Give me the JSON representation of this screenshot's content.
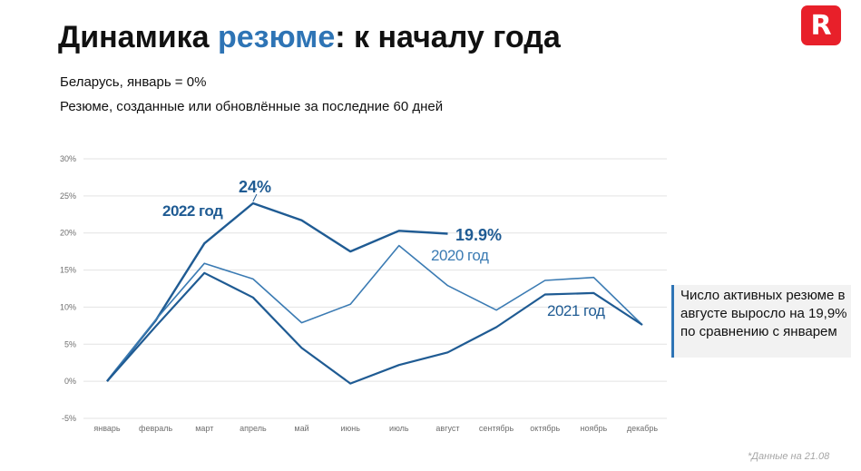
{
  "header": {
    "title_part1": "Динамика ",
    "title_highlight": "резюме",
    "title_part2": ": к началу года",
    "subtitle1": "Беларусь, январь = 0%",
    "subtitle2": "Резюме, созданные или обновлённые за последние 60 дней",
    "logo_letter": "R"
  },
  "colors": {
    "accent": "#2e74b5",
    "series_2022": "#1f5b93",
    "series_2021": "#1f5b93",
    "series_2020": "#3b7bb3",
    "logo": "#e8202a"
  },
  "callout": {
    "text": "Число активных резюме в августе выросло на 19,9% по сравнению с январем"
  },
  "footnote": "*Данные на 21.08",
  "chart_data": {
    "type": "line",
    "categories": [
      "январь",
      "февраль",
      "март",
      "апрель",
      "май",
      "июнь",
      "июль",
      "август",
      "сентябрь",
      "октябрь",
      "ноябрь",
      "декабрь"
    ],
    "y_ticks": [
      "30%",
      "25%",
      "20%",
      "15%",
      "10%",
      "5%",
      "0%",
      "-5%"
    ],
    "ylim": [
      -5,
      30
    ],
    "grid": true,
    "series": [
      {
        "name": "2022 год",
        "values": [
          0,
          8.2,
          18.6,
          24,
          21.7,
          17.5,
          20.3,
          19.9,
          null,
          null,
          null,
          null
        ]
      },
      {
        "name": "2020 год",
        "values": [
          0,
          8.3,
          15.9,
          13.8,
          7.9,
          10.4,
          18.3,
          12.9,
          9.6,
          13.6,
          14,
          7.6
        ]
      },
      {
        "name": "2021 год",
        "values": [
          0,
          7.4,
          14.6,
          11.3,
          4.5,
          -0.3,
          2.2,
          3.9,
          7.3,
          11.7,
          11.9,
          7.6
        ]
      }
    ],
    "annotations": [
      {
        "text": "24%",
        "series": "2022 год",
        "index": 3
      },
      {
        "text": "19.9%",
        "series": "2022 год",
        "index": 7
      }
    ]
  }
}
